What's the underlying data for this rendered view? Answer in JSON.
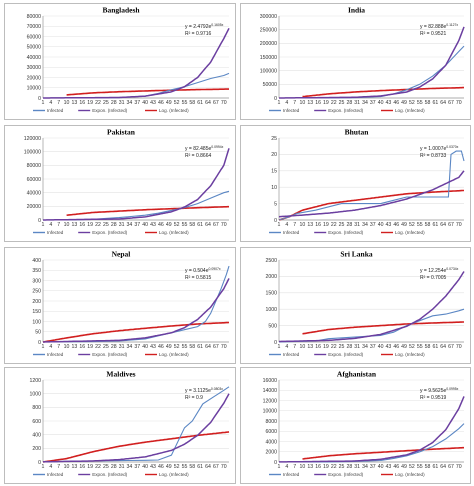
{
  "colors": {
    "infected": "#5b87c4",
    "expon": "#6b3fa0",
    "log": "#d11f1f",
    "grid": "#e2e2e2",
    "axis": "#999999"
  },
  "legend": {
    "infected": "Infected",
    "expon": "Expon. (Infected)",
    "log": "Log. (Infected)"
  },
  "x_ticks": [
    "1",
    "4",
    "7",
    "10",
    "13",
    "16",
    "19",
    "22",
    "25",
    "28",
    "31",
    "34",
    "37",
    "40",
    "43",
    "46",
    "49",
    "52",
    "55",
    "58",
    "61",
    "64",
    "67",
    "70"
  ],
  "chart_data": [
    {
      "type": "line",
      "title": "Bangladesh",
      "ylim": [
        0,
        80000
      ],
      "yticks": [
        0,
        10000,
        20000,
        30000,
        40000,
        50000,
        60000,
        70000,
        80000
      ],
      "equation": "y = 2.4792e",
      "eq_exp": "0.1605x",
      "r2": "R² = 0.9716",
      "infected": [
        [
          1,
          0
        ],
        [
          10,
          50
        ],
        [
          20,
          150
        ],
        [
          30,
          300
        ],
        [
          40,
          2000
        ],
        [
          45,
          4500
        ],
        [
          50,
          8000
        ],
        [
          55,
          11000
        ],
        [
          60,
          15000
        ],
        [
          65,
          19000
        ],
        [
          70,
          22000
        ],
        [
          72,
          24000
        ]
      ],
      "log_points": [
        [
          10,
          3000
        ],
        [
          20,
          5000
        ],
        [
          30,
          6100
        ],
        [
          40,
          6900
        ],
        [
          50,
          7600
        ],
        [
          60,
          8200
        ],
        [
          72,
          8700
        ]
      ],
      "expon_points": [
        [
          1,
          0
        ],
        [
          30,
          500
        ],
        [
          40,
          1800
        ],
        [
          50,
          6000
        ],
        [
          55,
          11000
        ],
        [
          60,
          20000
        ],
        [
          65,
          35000
        ],
        [
          70,
          58000
        ],
        [
          72,
          68000
        ]
      ]
    },
    {
      "type": "line",
      "title": "India",
      "ylim": [
        0,
        300000
      ],
      "yticks": [
        0,
        50000,
        100000,
        150000,
        200000,
        250000,
        300000
      ],
      "equation": "y = 82.888e",
      "eq_exp": "0.1127x",
      "r2": "R² = 0.9521",
      "infected": [
        [
          1,
          0
        ],
        [
          20,
          200
        ],
        [
          30,
          1000
        ],
        [
          40,
          5000
        ],
        [
          45,
          15000
        ],
        [
          50,
          30000
        ],
        [
          55,
          50000
        ],
        [
          60,
          80000
        ],
        [
          65,
          120000
        ],
        [
          70,
          170000
        ],
        [
          72,
          190000
        ]
      ],
      "log_points": [
        [
          10,
          5000
        ],
        [
          20,
          15000
        ],
        [
          30,
          22000
        ],
        [
          40,
          27000
        ],
        [
          50,
          31000
        ],
        [
          60,
          35000
        ],
        [
          72,
          38000
        ]
      ],
      "expon_points": [
        [
          1,
          0
        ],
        [
          30,
          2500
        ],
        [
          40,
          7500
        ],
        [
          50,
          22000
        ],
        [
          55,
          40000
        ],
        [
          60,
          70000
        ],
        [
          65,
          120000
        ],
        [
          70,
          210000
        ],
        [
          72,
          260000
        ]
      ]
    },
    {
      "type": "line",
      "title": "Pakistan",
      "ylim": [
        0,
        120000
      ],
      "yticks": [
        0,
        20000,
        40000,
        60000,
        80000,
        100000,
        120000
      ],
      "equation": "y = 82.485e",
      "eq_exp": "0.0994x",
      "r2": "R² = 0.8664",
      "infected": [
        [
          1,
          0
        ],
        [
          10,
          100
        ],
        [
          20,
          1000
        ],
        [
          30,
          3500
        ],
        [
          40,
          7000
        ],
        [
          45,
          10000
        ],
        [
          50,
          14000
        ],
        [
          55,
          18000
        ],
        [
          60,
          24000
        ],
        [
          65,
          32000
        ],
        [
          70,
          40000
        ],
        [
          72,
          42000
        ]
      ],
      "log_points": [
        [
          10,
          7000
        ],
        [
          20,
          11000
        ],
        [
          30,
          13000
        ],
        [
          40,
          15000
        ],
        [
          50,
          16500
        ],
        [
          60,
          18000
        ],
        [
          72,
          19500
        ]
      ],
      "expon_points": [
        [
          1,
          0
        ],
        [
          30,
          1500
        ],
        [
          40,
          4500
        ],
        [
          50,
          12000
        ],
        [
          55,
          19000
        ],
        [
          60,
          30000
        ],
        [
          65,
          50000
        ],
        [
          70,
          80000
        ],
        [
          72,
          105000
        ]
      ]
    },
    {
      "type": "line",
      "title": "Bhutan",
      "ylim": [
        0,
        25
      ],
      "yticks": [
        0,
        5,
        10,
        15,
        20,
        25
      ],
      "equation": "y = 1.0007e",
      "eq_exp": "0.0370x",
      "r2": "R² = 0.8733",
      "infected": [
        [
          1,
          0
        ],
        [
          5,
          1
        ],
        [
          8,
          2
        ],
        [
          15,
          3
        ],
        [
          25,
          5
        ],
        [
          35,
          5
        ],
        [
          40,
          5
        ],
        [
          45,
          6
        ],
        [
          50,
          7
        ],
        [
          60,
          7
        ],
        [
          66,
          7
        ],
        [
          67,
          20
        ],
        [
          69,
          21
        ],
        [
          71,
          21
        ],
        [
          72,
          18
        ]
      ],
      "log_points": [
        [
          1,
          0
        ],
        [
          5,
          1
        ],
        [
          10,
          3
        ],
        [
          20,
          5
        ],
        [
          30,
          6
        ],
        [
          40,
          7
        ],
        [
          50,
          8
        ],
        [
          60,
          8.5
        ],
        [
          72,
          9
        ]
      ],
      "expon_points": [
        [
          1,
          1
        ],
        [
          10,
          1.5
        ],
        [
          20,
          2.1
        ],
        [
          30,
          3
        ],
        [
          40,
          4.4
        ],
        [
          50,
          6.4
        ],
        [
          60,
          9.2
        ],
        [
          70,
          13
        ],
        [
          72,
          15
        ]
      ]
    },
    {
      "type": "line",
      "title": "Nepal",
      "ylim": [
        0,
        400
      ],
      "yticks": [
        0,
        50,
        100,
        150,
        200,
        250,
        300,
        350,
        400
      ],
      "equation": "y = 0.504e",
      "eq_exp": "0.0907x",
      "r2": "R² = 0.5815",
      "infected": [
        [
          1,
          0
        ],
        [
          20,
          2
        ],
        [
          30,
          5
        ],
        [
          40,
          15
        ],
        [
          45,
          30
        ],
        [
          50,
          45
        ],
        [
          55,
          60
        ],
        [
          60,
          75
        ],
        [
          63,
          100
        ],
        [
          65,
          140
        ],
        [
          67,
          200
        ],
        [
          69,
          260
        ],
        [
          71,
          330
        ],
        [
          72,
          370
        ]
      ],
      "log_points": [
        [
          1,
          0
        ],
        [
          10,
          20
        ],
        [
          20,
          40
        ],
        [
          30,
          55
        ],
        [
          40,
          67
        ],
        [
          50,
          78
        ],
        [
          60,
          88
        ],
        [
          72,
          95
        ]
      ],
      "expon_points": [
        [
          1,
          0
        ],
        [
          30,
          8
        ],
        [
          40,
          20
        ],
        [
          50,
          45
        ],
        [
          55,
          70
        ],
        [
          60,
          110
        ],
        [
          65,
          170
        ],
        [
          70,
          260
        ],
        [
          72,
          310
        ]
      ]
    },
    {
      "type": "line",
      "title": "Sri Lanka",
      "ylim": [
        0,
        2500
      ],
      "yticks": [
        0,
        500,
        1000,
        1500,
        2000,
        2500
      ],
      "equation": "y = 12.254e",
      "eq_exp": "0.0734x",
      "r2": "R² = 0.7005",
      "infected": [
        [
          1,
          0
        ],
        [
          15,
          30
        ],
        [
          20,
          100
        ],
        [
          30,
          150
        ],
        [
          40,
          200
        ],
        [
          45,
          300
        ],
        [
          50,
          500
        ],
        [
          55,
          650
        ],
        [
          60,
          800
        ],
        [
          65,
          850
        ],
        [
          70,
          950
        ],
        [
          72,
          1000
        ]
      ],
      "log_points": [
        [
          10,
          250
        ],
        [
          20,
          380
        ],
        [
          30,
          450
        ],
        [
          40,
          500
        ],
        [
          50,
          550
        ],
        [
          60,
          580
        ],
        [
          72,
          610
        ]
      ],
      "expon_points": [
        [
          1,
          15
        ],
        [
          20,
          50
        ],
        [
          30,
          110
        ],
        [
          40,
          230
        ],
        [
          50,
          480
        ],
        [
          55,
          690
        ],
        [
          60,
          1000
        ],
        [
          65,
          1400
        ],
        [
          70,
          1900
        ],
        [
          72,
          2150
        ]
      ]
    },
    {
      "type": "line",
      "title": "Maldives",
      "ylim": [
        0,
        1200
      ],
      "yticks": [
        0,
        200,
        400,
        600,
        800,
        1000,
        1200
      ],
      "equation": "y = 3.1125e",
      "eq_exp": "0.0803x",
      "r2": "R² = 0.9",
      "infected": [
        [
          1,
          0
        ],
        [
          10,
          10
        ],
        [
          20,
          15
        ],
        [
          30,
          20
        ],
        [
          40,
          25
        ],
        [
          45,
          30
        ],
        [
          50,
          100
        ],
        [
          55,
          500
        ],
        [
          58,
          600
        ],
        [
          62,
          850
        ],
        [
          66,
          950
        ],
        [
          70,
          1050
        ],
        [
          72,
          1100
        ]
      ],
      "log_points": [
        [
          1,
          0
        ],
        [
          10,
          50
        ],
        [
          20,
          150
        ],
        [
          30,
          230
        ],
        [
          40,
          290
        ],
        [
          50,
          340
        ],
        [
          60,
          390
        ],
        [
          72,
          440
        ]
      ],
      "expon_points": [
        [
          1,
          3
        ],
        [
          20,
          15
        ],
        [
          30,
          35
        ],
        [
          40,
          75
        ],
        [
          50,
          170
        ],
        [
          55,
          260
        ],
        [
          60,
          390
        ],
        [
          65,
          580
        ],
        [
          70,
          860
        ],
        [
          72,
          1000
        ]
      ]
    },
    {
      "type": "line",
      "title": "Afghanistan",
      "ylim": [
        0,
        16000
      ],
      "yticks": [
        0,
        2000,
        4000,
        6000,
        8000,
        10000,
        12000,
        14000,
        16000
      ],
      "equation": "y = 9.5625e",
      "eq_exp": "0.0995x",
      "r2": "R² = 0.9519",
      "infected": [
        [
          1,
          0
        ],
        [
          20,
          20
        ],
        [
          30,
          100
        ],
        [
          40,
          300
        ],
        [
          45,
          700
        ],
        [
          50,
          1200
        ],
        [
          55,
          2000
        ],
        [
          60,
          3000
        ],
        [
          65,
          4500
        ],
        [
          70,
          6500
        ],
        [
          72,
          7500
        ]
      ],
      "log_points": [
        [
          10,
          600
        ],
        [
          20,
          1200
        ],
        [
          30,
          1600
        ],
        [
          40,
          1900
        ],
        [
          50,
          2200
        ],
        [
          60,
          2500
        ],
        [
          72,
          2800
        ]
      ],
      "expon_points": [
        [
          1,
          10
        ],
        [
          30,
          190
        ],
        [
          40,
          520
        ],
        [
          50,
          1400
        ],
        [
          55,
          2300
        ],
        [
          60,
          3800
        ],
        [
          65,
          6300
        ],
        [
          70,
          10400
        ],
        [
          72,
          12800
        ]
      ]
    }
  ]
}
